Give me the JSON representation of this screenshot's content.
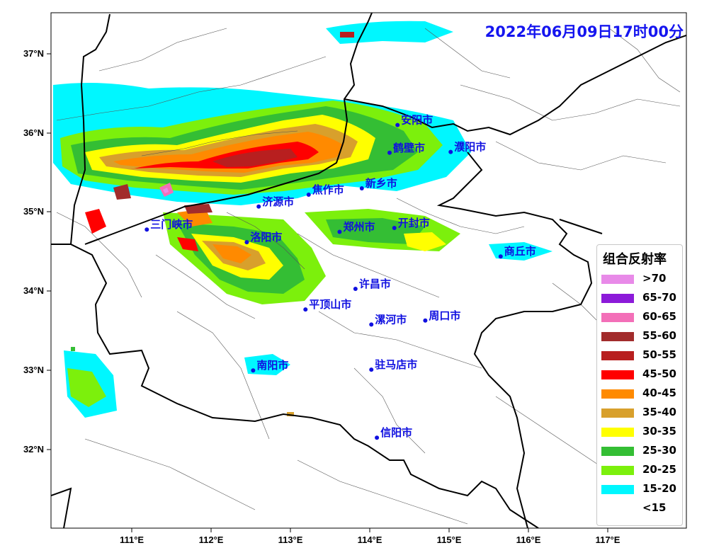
{
  "timestamp": "2022年06月09日17时00分",
  "axes": {
    "lat_labels": [
      "37°N",
      "36°N",
      "35°N",
      "34°N",
      "33°N",
      "32°N"
    ],
    "lon_labels": [
      "111°E",
      "112°E",
      "113°E",
      "114°E",
      "115°E",
      "116°E",
      "117°E"
    ]
  },
  "cities": [
    {
      "name": "安阳市",
      "lon": 114.35,
      "lat": 36.1
    },
    {
      "name": "鹤壁市",
      "lon": 114.25,
      "lat": 35.75
    },
    {
      "name": "濮阳市",
      "lon": 115.02,
      "lat": 35.76
    },
    {
      "name": "新乡市",
      "lon": 113.9,
      "lat": 35.3
    },
    {
      "name": "焦作市",
      "lon": 113.23,
      "lat": 35.22
    },
    {
      "name": "济源市",
      "lon": 112.6,
      "lat": 35.07
    },
    {
      "name": "三门峡市",
      "lon": 111.19,
      "lat": 34.78
    },
    {
      "name": "郑州市",
      "lon": 113.62,
      "lat": 34.75
    },
    {
      "name": "开封市",
      "lon": 114.31,
      "lat": 34.8
    },
    {
      "name": "洛阳市",
      "lon": 112.45,
      "lat": 34.62
    },
    {
      "name": "商丘市",
      "lon": 115.65,
      "lat": 34.44
    },
    {
      "name": "许昌市",
      "lon": 113.82,
      "lat": 34.03
    },
    {
      "name": "平顶山市",
      "lon": 113.19,
      "lat": 33.77
    },
    {
      "name": "漯河市",
      "lon": 114.02,
      "lat": 33.58
    },
    {
      "name": "周口市",
      "lon": 114.7,
      "lat": 33.63
    },
    {
      "name": "南阳市",
      "lon": 112.53,
      "lat": 33.0
    },
    {
      "name": "驻马店市",
      "lon": 114.02,
      "lat": 33.01
    },
    {
      "name": "信阳市",
      "lon": 114.09,
      "lat": 32.15
    }
  ],
  "legend": {
    "title": "组合反射率",
    "items": [
      {
        "label": ">70",
        "color": "#e88ae8"
      },
      {
        "label": "65-70",
        "color": "#8c1ad9"
      },
      {
        "label": "60-65",
        "color": "#f36fb8"
      },
      {
        "label": "55-60",
        "color": "#a22c2c"
      },
      {
        "label": "50-55",
        "color": "#b81f1f"
      },
      {
        "label": "45-50",
        "color": "#ff0000"
      },
      {
        "label": "40-45",
        "color": "#ff8a00"
      },
      {
        "label": "35-40",
        "color": "#d8a02c"
      },
      {
        "label": "30-35",
        "color": "#ffff00"
      },
      {
        "label": "25-30",
        "color": "#34be34"
      },
      {
        "label": "20-25",
        "color": "#7cf00c"
      },
      {
        "label": "15-20",
        "color": "#00f7ff"
      },
      {
        "label": "<15",
        "color": "#ffffff"
      }
    ]
  }
}
